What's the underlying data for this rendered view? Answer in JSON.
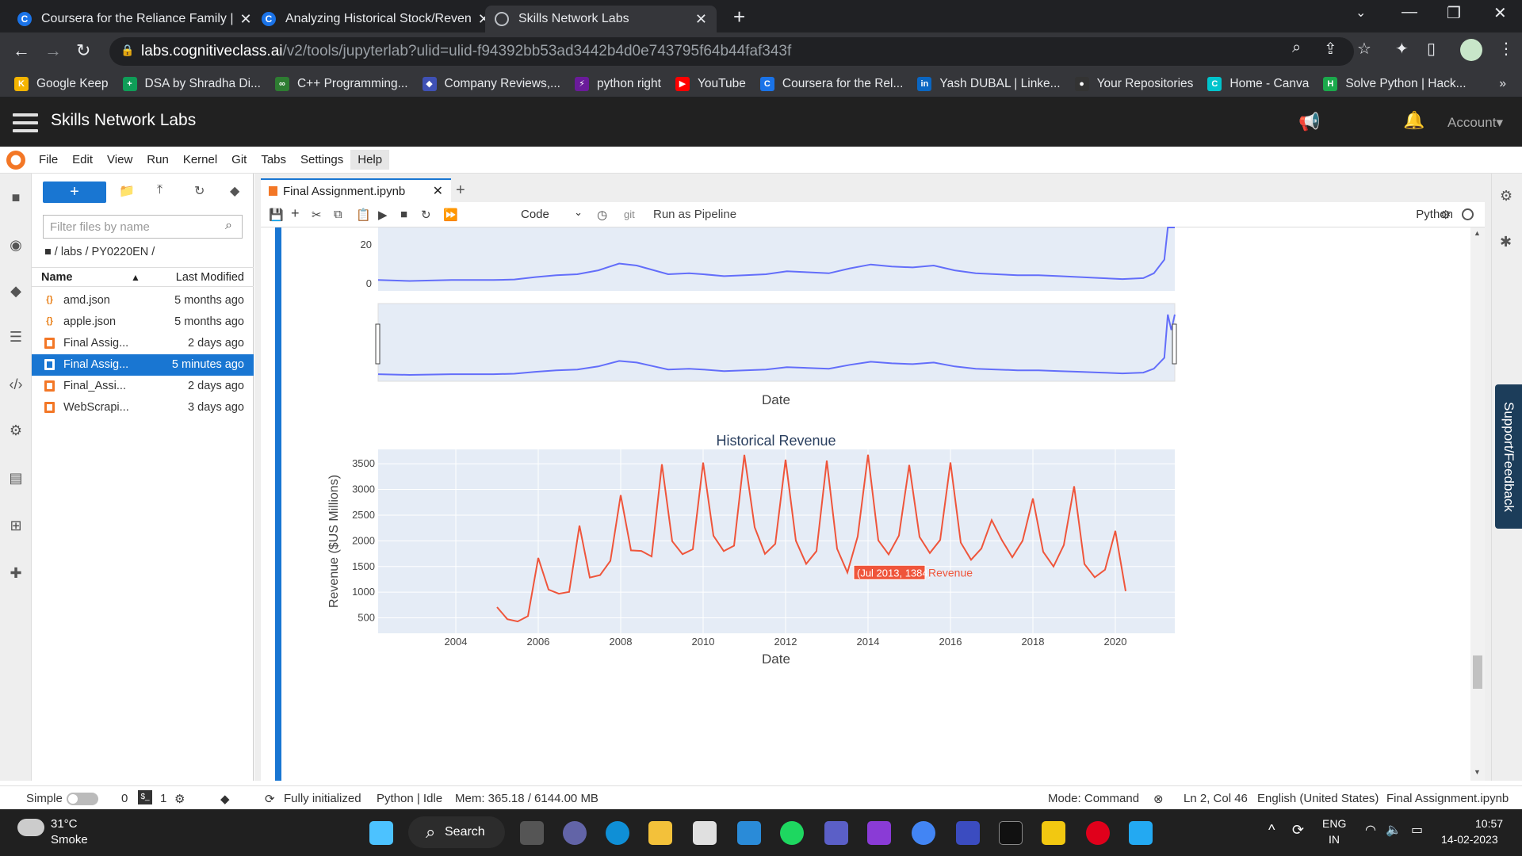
{
  "browser": {
    "tabs": [
      {
        "title": "Coursera for the Reliance Family |",
        "active": false,
        "icon": "C"
      },
      {
        "title": "Analyzing Historical Stock/Reven",
        "active": false,
        "icon": "C"
      },
      {
        "title": "Skills Network Labs",
        "active": true,
        "icon": "globe"
      }
    ],
    "url_host": "labs.cognitiveclass.ai",
    "url_path": "/v2/tools/jupyterlab?ulid=ulid-f94392bb53ad3442b4d0e743795f64b44faf343f",
    "bookmarks": [
      {
        "label": "Google Keep",
        "color": "#f4b400",
        "glyph": "K"
      },
      {
        "label": "DSA by Shradha Di...",
        "color": "#0f9d58",
        "glyph": "+"
      },
      {
        "label": "C++ Programming...",
        "color": "#2e7d32",
        "glyph": "∞"
      },
      {
        "label": "Company Reviews,...",
        "color": "#3f51b5",
        "glyph": "◆"
      },
      {
        "label": "python right",
        "color": "#6a1b9a",
        "glyph": "⚡"
      },
      {
        "label": "YouTube",
        "color": "#ff0000",
        "glyph": "▶"
      },
      {
        "label": "Coursera for the Rel...",
        "color": "#1a73e8",
        "glyph": "C"
      },
      {
        "label": "Yash DUBAL | Linke...",
        "color": "#0a66c2",
        "glyph": "in"
      },
      {
        "label": "Your Repositories",
        "color": "#333333",
        "glyph": "●"
      },
      {
        "label": "Home - Canva",
        "color": "#00c4cc",
        "glyph": "C"
      },
      {
        "label": "Solve Python | Hack...",
        "color": "#1ba94c",
        "glyph": "H"
      }
    ]
  },
  "snl": {
    "title": "Skills Network Labs",
    "account": "Account"
  },
  "menu": [
    "File",
    "Edit",
    "View",
    "Run",
    "Kernel",
    "Git",
    "Tabs",
    "Settings",
    "Help"
  ],
  "filebrowser": {
    "new_label": "+",
    "filter_placeholder": "Filter files by name",
    "breadcrumb": "/ labs / PY0220EN /",
    "col_name": "Name",
    "col_modified": "Last Modified",
    "files": [
      {
        "name": "amd.json",
        "modified": "5 months ago",
        "type": "json",
        "selected": false
      },
      {
        "name": "apple.json",
        "modified": "5 months ago",
        "type": "json",
        "selected": false
      },
      {
        "name": "Final Assig...",
        "modified": "2 days ago",
        "type": "notebook",
        "selected": false
      },
      {
        "name": "Final Assig...",
        "modified": "5 minutes ago",
        "type": "notebook",
        "selected": true
      },
      {
        "name": "Final_Assi...",
        "modified": "2 days ago",
        "type": "notebook",
        "selected": false
      },
      {
        "name": "WebScrapi...",
        "modified": "3 days ago",
        "type": "notebook",
        "selected": false
      }
    ]
  },
  "notebook": {
    "tab_title": "Final Assignment.ipynb",
    "cell_type": "Code",
    "git_label": "git",
    "pipeline_label": "Run as Pipeline",
    "kernel": "Python"
  },
  "chart_data": [
    {
      "type": "line",
      "title": "",
      "xlabel": "Date",
      "ylabel": "",
      "y_ticks": [
        "20",
        "0"
      ],
      "ylim": [
        -3,
        45
      ],
      "x_range": [
        "2002-04",
        "2021-04"
      ],
      "color": "#636efa",
      "series": [
        {
          "x": [
            "2002-04",
            "2003-01",
            "2004-01",
            "2005-01",
            "2005-07",
            "2006-01",
            "2006-07",
            "2007-01",
            "2007-07",
            "2008-01",
            "2008-06",
            "2008-10",
            "2009-03",
            "2009-09",
            "2010-01",
            "2010-07",
            "2011-01",
            "2011-07",
            "2012-01",
            "2012-07",
            "2013-01",
            "2013-07",
            "2014-01",
            "2014-07",
            "2015-01",
            "2015-07",
            "2016-01",
            "2016-07",
            "2017-01",
            "2017-07",
            "2018-01",
            "2018-07",
            "2019-01",
            "2019-07",
            "2020-01",
            "2020-07",
            "2020-10",
            "2021-01",
            "2021-02",
            "2021-03",
            "2021-04"
          ],
          "y": [
            1.5,
            1.0,
            1.5,
            1.5,
            1.8,
            3.0,
            4.0,
            4.5,
            6.5,
            10.0,
            9.0,
            7.0,
            4.5,
            5.0,
            4.5,
            3.5,
            4.0,
            4.5,
            6.0,
            5.5,
            5.0,
            7.5,
            9.5,
            8.5,
            8.0,
            9.0,
            6.5,
            5.0,
            4.5,
            4.0,
            4.0,
            3.5,
            3.0,
            2.5,
            2.0,
            2.5,
            5.0,
            12.0,
            40.0,
            30.0,
            40.0
          ]
        }
      ]
    },
    {
      "type": "line",
      "title": "Historical Revenue",
      "xlabel": "Date",
      "ylabel": "Revenue ($US Millions)",
      "x_ticks": [
        "2004",
        "2006",
        "2008",
        "2010",
        "2012",
        "2014",
        "2016",
        "2018",
        "2020"
      ],
      "y_ticks": [
        500,
        1000,
        1500,
        2000,
        2500,
        3000,
        3500
      ],
      "ylim": [
        200,
        3780
      ],
      "color": "#ef553b",
      "series": [
        {
          "name": "Revenue",
          "x": [
            2005.0,
            2005.25,
            2005.5,
            2005.75,
            2006.0,
            2006.25,
            2006.5,
            2006.75,
            2007.0,
            2007.25,
            2007.5,
            2007.75,
            2008.0,
            2008.25,
            2008.5,
            2008.75,
            2009.0,
            2009.25,
            2009.5,
            2009.75,
            2010.0,
            2010.25,
            2010.5,
            2010.75,
            2011.0,
            2011.25,
            2011.5,
            2011.75,
            2012.0,
            2012.25,
            2012.5,
            2012.75,
            2013.0,
            2013.25,
            2013.5,
            2013.75,
            2014.0,
            2014.25,
            2014.5,
            2014.75,
            2015.0,
            2015.25,
            2015.5,
            2015.75,
            2016.0,
            2016.25,
            2016.5,
            2016.75,
            2017.0,
            2017.25,
            2017.5,
            2017.75,
            2018.0,
            2018.25,
            2018.5,
            2018.75,
            2019.0,
            2019.25,
            2019.5,
            2019.75,
            2020.0,
            2020.25
          ],
          "y": [
            709,
            475,
            430,
            534,
            1667,
            1050,
            970,
            1005,
            2296,
            1285,
            1333,
            1611,
            2889,
            1814,
            1804,
            1696,
            3492,
            1992,
            1740,
            1835,
            3524,
            2099,
            1800,
            1905,
            3674,
            2265,
            1744,
            1940,
            3579,
            2002,
            1550,
            1800,
            3562,
            1845,
            1384,
            2086,
            3676,
            2009,
            1735,
            2102,
            3476,
            2077,
            1762,
            2016,
            3525,
            1965,
            1630,
            1849,
            2403,
            2010,
            1680,
            2002,
            2825,
            1786,
            1500,
            1918,
            3063,
            1548,
            1289,
            1438,
            2194,
            1021
          ]
        }
      ],
      "hover": {
        "text": "(Jul 2013, 1384)",
        "series": "Revenue",
        "x": 2013.5,
        "y": 1384
      }
    }
  ],
  "status": {
    "mode_simple": "Simple",
    "count0": "0",
    "count1": "1",
    "init": "Fully initialized",
    "kernel_state": "Python | Idle",
    "mem": "Mem: 365.18 / 6144.00 MB",
    "mode": "Mode: Command",
    "cursor": "Ln 2, Col 46",
    "lang": "English (United States)",
    "file": "Final Assignment.ipynb"
  },
  "support_label": "Support/Feedback",
  "taskbar": {
    "temp": "31°C",
    "weather": "Smoke",
    "search": "Search",
    "lang1": "ENG",
    "lang2": "IN",
    "time": "10:57",
    "date": "14-02-2023"
  }
}
